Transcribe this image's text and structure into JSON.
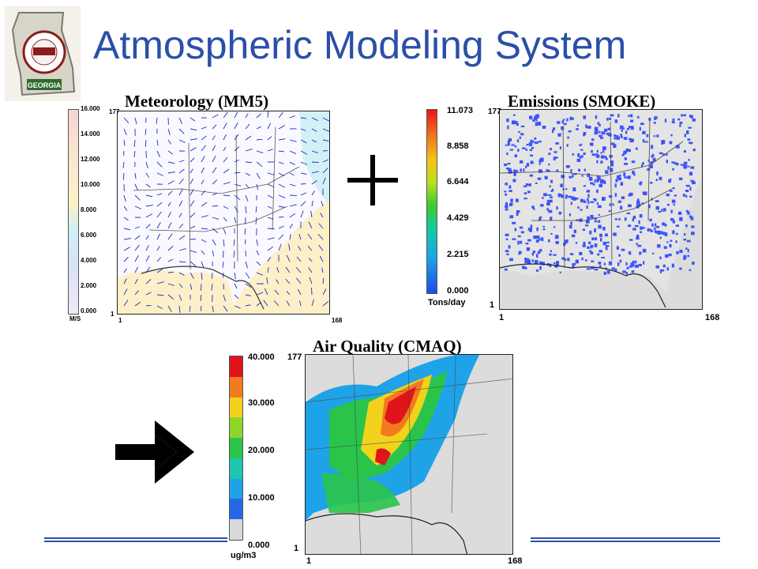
{
  "slide": {
    "title": "Atmospheric Modeling System",
    "logo": {
      "text_top": "DEPT OF NATURAL RESOURCES",
      "text_mid": "ENVIRONMENTAL PROTECTION DIVISION",
      "text_bottom": "GEORGIA"
    },
    "plus_symbol": "+",
    "arrow_icon": "right-arrow-icon"
  },
  "met_panel": {
    "title": "Meteorology (MM5)",
    "colorbar_ticks": [
      "16.000",
      "14.000",
      "12.000",
      "10.000",
      "8.000",
      "6.000",
      "4.000",
      "2.000",
      "0.000"
    ],
    "units": "M/S",
    "y_top": "177",
    "y_bottom": "1",
    "x_left": "1",
    "x_right": "168"
  },
  "emis_panel": {
    "title": "Emissions (SMOKE)",
    "colorbar_ticks": [
      "11.073",
      "8.858",
      "6.644",
      "4.429",
      "2.215",
      "0.000"
    ],
    "units": "Tons/day",
    "y_top": "177",
    "y_bottom": "1",
    "x_left": "1",
    "x_right": "168"
  },
  "aq_panel": {
    "title": "Air Quality (CMAQ)",
    "colorbar_ticks": [
      "40.000",
      "30.000",
      "20.000",
      "10.000",
      "0.000"
    ],
    "units": "ug/m3",
    "y_top": "177",
    "y_bottom": "1",
    "x_left": "1",
    "x_right": "168"
  },
  "colors": {
    "title_blue": "#2b4fa8",
    "map_gray": "#dcdcdc",
    "emission_blue": "#1f3cff"
  }
}
